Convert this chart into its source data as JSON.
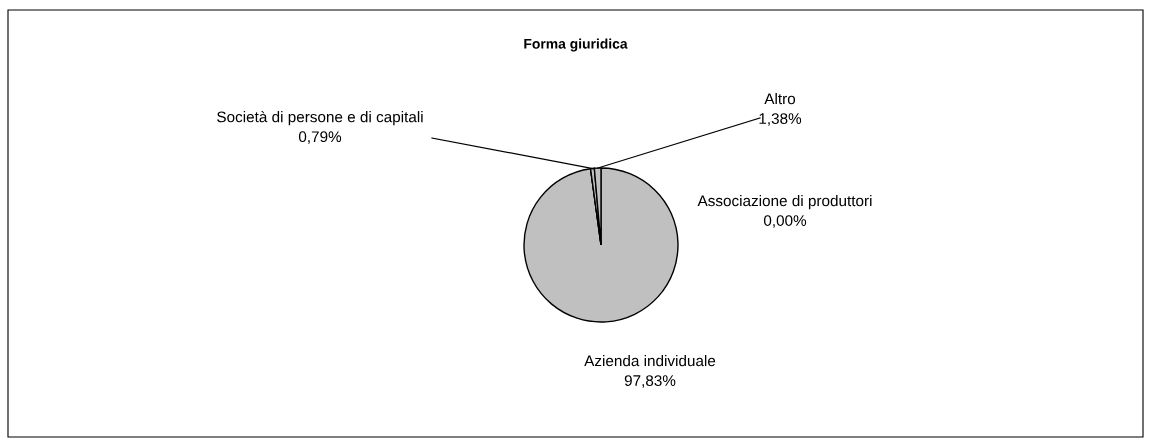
{
  "chart_data": {
    "type": "pie",
    "title": "Forma giuridica",
    "categories": [
      "Azienda individuale",
      "Associazione di produttori",
      "Società di persone e di capitali",
      "Altro"
    ],
    "values": [
      97.83,
      0.0,
      0.79,
      1.38
    ],
    "colors": [
      "#c0c0c0",
      "#c0c0c0",
      "#c0c0c0",
      "#c0c0c0"
    ],
    "value_labels": [
      "97,83%",
      "0,00%",
      "0,79%",
      "1,38%"
    ],
    "legend": false
  }
}
